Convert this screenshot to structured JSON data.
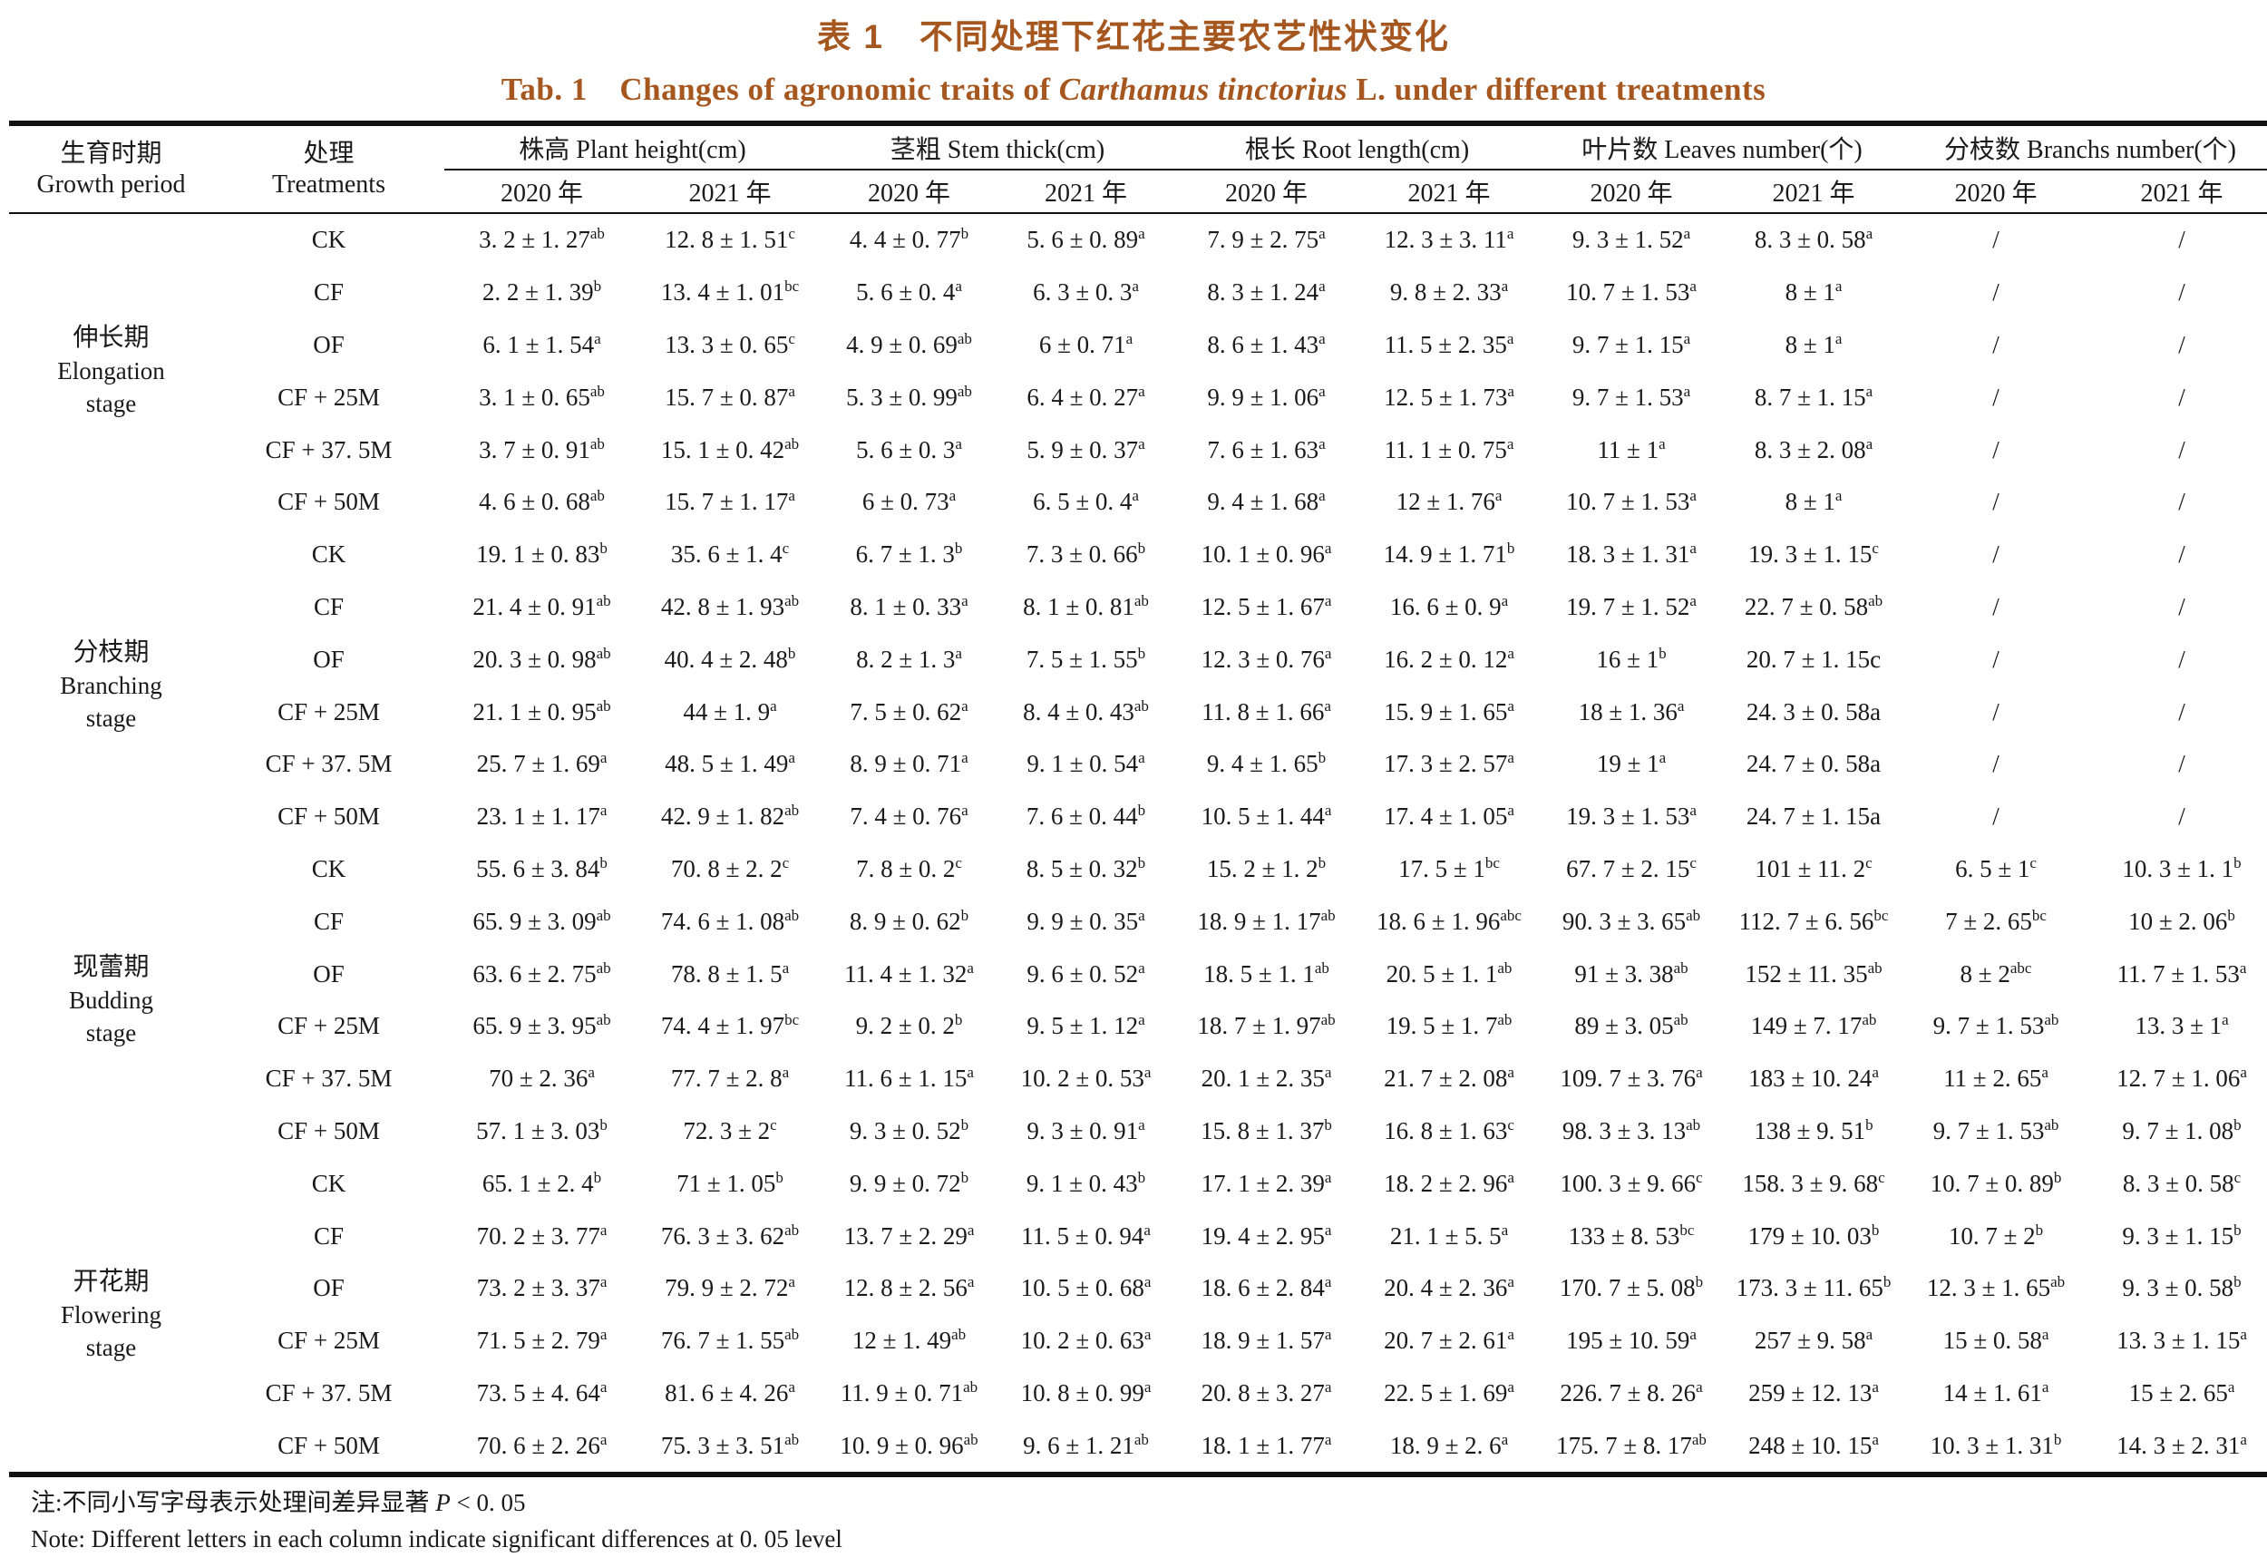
{
  "page": {
    "title_cn": "表 1　不同处理下红花主要农艺性状变化",
    "title_en_prefix": "Tab. 1　Changes of agronomic traits of ",
    "title_en_italic": "Carthamus tinctorius",
    "title_en_suffix": " L.  under different treatments",
    "accent_color": "#a5571f"
  },
  "table": {
    "col_growth": {
      "cn": "生育时期",
      "en": "Growth period"
    },
    "col_treatment": {
      "cn": "处理",
      "en": "Treatments"
    },
    "groups": [
      "株高 Plant height(cm)",
      "茎粗 Stem thick(cm)",
      "根长 Root length(cm)",
      "叶片数 Leaves number(个)",
      "分枝数 Branchs number(个)"
    ],
    "years": [
      "2020 年",
      "2021 年"
    ],
    "stages": [
      {
        "cn": "伸长期",
        "en_lines": [
          "Elongation",
          "stage"
        ],
        "rows": [
          {
            "treatment": "CK",
            "cells": [
              "3. 2 ± 1. 27^ab",
              "12. 8 ± 1. 51^c",
              "4. 4 ± 0. 77^b",
              "5. 6 ± 0. 89^a",
              "7. 9 ± 2. 75^a",
              "12. 3 ± 3. 11^a",
              "9. 3 ± 1. 52^a",
              "8. 3 ± 0. 58^a",
              "/",
              "/"
            ]
          },
          {
            "treatment": "CF",
            "cells": [
              "2. 2 ± 1. 39^b",
              "13. 4 ± 1. 01^bc",
              "5. 6 ± 0. 4^a",
              "6. 3 ± 0. 3^a",
              "8. 3 ± 1. 24^a",
              "9. 8 ± 2. 33^a",
              "10. 7 ± 1. 53^a",
              "8 ± 1^a",
              "/",
              "/"
            ]
          },
          {
            "treatment": "OF",
            "cells": [
              "6. 1 ± 1. 54^a",
              "13. 3 ± 0. 65^c",
              "4. 9 ± 0. 69^ab",
              "6 ± 0. 71^a",
              "8. 6 ± 1. 43^a",
              "11. 5 ± 2. 35^a",
              "9. 7 ± 1. 15^a",
              "8 ± 1^a",
              "/",
              "/"
            ]
          },
          {
            "treatment": "CF + 25M",
            "cells": [
              "3. 1 ± 0. 65^ab",
              "15. 7 ± 0. 87^a",
              "5. 3 ± 0. 99^ab",
              "6. 4 ± 0. 27^a",
              "9. 9 ± 1. 06^a",
              "12. 5 ± 1. 73^a",
              "9. 7 ± 1. 53^a",
              "8. 7 ± 1. 15^a",
              "/",
              "/"
            ]
          },
          {
            "treatment": "CF + 37. 5M",
            "cells": [
              "3. 7 ± 0. 91^ab",
              "15. 1 ± 0. 42^ab",
              "5. 6 ± 0. 3^a",
              "5. 9 ± 0. 37^a",
              "7. 6 ± 1. 63^a",
              "11. 1 ± 0. 75^a",
              "11 ± 1^a",
              "8. 3 ± 2. 08^a",
              "/",
              "/"
            ]
          },
          {
            "treatment": "CF + 50M",
            "cells": [
              "4. 6 ± 0. 68^ab",
              "15. 7 ± 1. 17^a",
              "6 ± 0. 73^a",
              "6. 5 ± 0. 4^a",
              "9. 4 ± 1. 68^a",
              "12 ± 1. 76^a",
              "10. 7 ± 1. 53^a",
              "8 ± 1^a",
              "/",
              "/"
            ]
          }
        ]
      },
      {
        "cn": "分枝期",
        "en_lines": [
          "Branching",
          "stage"
        ],
        "rows": [
          {
            "treatment": "CK",
            "cells": [
              "19. 1 ± 0. 83^b",
              "35. 6 ± 1. 4^c",
              "6. 7 ± 1. 3^b",
              "7. 3 ± 0. 66^b",
              "10. 1 ± 0. 96^a",
              "14. 9 ± 1. 71^b",
              "18. 3 ± 1. 31^a",
              "19. 3 ± 1. 15^c",
              "/",
              "/"
            ]
          },
          {
            "treatment": "CF",
            "cells": [
              "21. 4 ± 0. 91^ab",
              "42. 8 ± 1. 93^ab",
              "8. 1 ± 0. 33^a",
              "8. 1 ± 0. 81^ab",
              "12. 5 ± 1. 67^a",
              "16. 6 ± 0. 9^a",
              "19. 7 ± 1. 52^a",
              "22. 7 ± 0. 58^ab",
              "/",
              "/"
            ]
          },
          {
            "treatment": "OF",
            "cells": [
              "20. 3 ± 0. 98^ab",
              "40. 4 ± 2. 48^b",
              "8. 2 ± 1. 3^a",
              "7. 5 ± 1. 55^b",
              "12. 3 ± 0. 76^a",
              "16. 2 ± 0. 12^a",
              "16 ± 1^b",
              "20. 7 ± 1. 15c",
              "/",
              "/"
            ]
          },
          {
            "treatment": "CF + 25M",
            "cells": [
              "21. 1 ± 0. 95^ab",
              "44 ± 1. 9^a",
              "7. 5 ± 0. 62^a",
              "8. 4 ± 0. 43^ab",
              "11. 8 ± 1. 66^a",
              "15. 9 ± 1. 65^a",
              "18 ± 1. 36^a",
              "24. 3 ± 0. 58a",
              "/",
              "/"
            ]
          },
          {
            "treatment": "CF + 37. 5M",
            "cells": [
              "25. 7 ± 1. 69^a",
              "48. 5 ± 1. 49^a",
              "8. 9 ± 0. 71^a",
              "9. 1 ± 0. 54^a",
              "9. 4 ± 1. 65^b",
              "17. 3 ± 2. 57^a",
              "19 ± 1^a",
              "24. 7 ± 0. 58a",
              "/",
              "/"
            ]
          },
          {
            "treatment": "CF + 50M",
            "cells": [
              "23. 1 ± 1. 17^a",
              "42. 9 ± 1. 82^ab",
              "7. 4 ± 0. 76^a",
              "7. 6 ± 0. 44^b",
              "10. 5 ± 1. 44^a",
              "17. 4 ± 1. 05^a",
              "19. 3 ± 1. 53^a",
              "24. 7 ± 1. 15a",
              "/",
              "/"
            ]
          }
        ]
      },
      {
        "cn": "现蕾期",
        "en_lines": [
          "Budding",
          "stage"
        ],
        "rows": [
          {
            "treatment": "CK",
            "cells": [
              "55. 6 ± 3. 84^b",
              "70. 8 ± 2. 2^c",
              "7. 8 ± 0. 2^c",
              "8. 5 ± 0. 32^b",
              "15. 2 ± 1. 2^b",
              "17. 5 ± 1^bc",
              "67. 7 ± 2. 15^c",
              "101 ± 11. 2^c",
              "6. 5 ± 1^c",
              "10. 3 ± 1. 1^b"
            ]
          },
          {
            "treatment": "CF",
            "cells": [
              "65. 9 ± 3. 09^ab",
              "74. 6 ± 1. 08^ab",
              "8. 9 ± 0. 62^b",
              "9. 9 ± 0. 35^a",
              "18. 9 ± 1. 17^ab",
              "18. 6 ± 1. 96^abc",
              "90. 3 ± 3. 65^ab",
              "112. 7 ± 6. 56^bc",
              "7 ± 2. 65^bc",
              "10 ± 2. 06^b"
            ]
          },
          {
            "treatment": "OF",
            "cells": [
              "63. 6 ± 2. 75^ab",
              "78. 8 ± 1. 5^a",
              "11. 4 ± 1. 32^a",
              "9. 6 ± 0. 52^a",
              "18. 5 ± 1. 1^ab",
              "20. 5 ± 1. 1^ab",
              "91 ± 3. 38^ab",
              "152 ± 11. 35^ab",
              "8 ± 2^abc",
              "11. 7 ± 1. 53^a"
            ]
          },
          {
            "treatment": "CF + 25M",
            "cells": [
              "65. 9 ± 3. 95^ab",
              "74. 4 ± 1. 97^bc",
              "9. 2 ± 0. 2^b",
              "9. 5 ± 1. 12^a",
              "18. 7 ± 1. 97^ab",
              "19. 5 ± 1. 7^ab",
              "89 ± 3. 05^ab",
              "149 ± 7. 17^ab",
              "9. 7 ± 1. 53^ab",
              "13. 3 ± 1^a"
            ]
          },
          {
            "treatment": "CF + 37. 5M",
            "cells": [
              "70 ± 2. 36^a",
              "77. 7 ± 2. 8^a",
              "11. 6 ± 1. 15^a",
              "10. 2 ± 0. 53^a",
              "20. 1 ± 2. 35^a",
              "21. 7 ± 2. 08^a",
              "109. 7 ± 3. 76^a",
              "183 ± 10. 24^a",
              "11 ± 2. 65^a",
              "12. 7 ± 1. 06^a"
            ]
          },
          {
            "treatment": "CF + 50M",
            "cells": [
              "57. 1 ± 3. 03^b",
              "72. 3 ± 2^c",
              "9. 3 ± 0. 52^b",
              "9. 3 ± 0. 91^a",
              "15. 8 ± 1. 37^b",
              "16. 8 ± 1. 63^c",
              "98. 3 ± 3. 13^ab",
              "138 ± 9. 51^b",
              "9. 7 ± 1. 53^ab",
              "9. 7 ± 1. 08^b"
            ]
          }
        ]
      },
      {
        "cn": "开花期",
        "en_lines": [
          "Flowering",
          "stage"
        ],
        "rows": [
          {
            "treatment": "CK",
            "cells": [
              "65. 1 ± 2. 4^b",
              "71 ± 1. 05^b",
              "9. 9 ± 0. 72^b",
              "9. 1 ± 0. 43^b",
              "17. 1 ± 2. 39^a",
              "18. 2 ± 2. 96^a",
              "100. 3 ± 9. 66^c",
              "158. 3 ± 9. 68^c",
              "10. 7 ± 0. 89^b",
              "8. 3 ± 0. 58^c"
            ]
          },
          {
            "treatment": "CF",
            "cells": [
              "70. 2 ± 3. 77^a",
              "76. 3 ± 3. 62^ab",
              "13. 7 ± 2. 29^a",
              "11. 5 ± 0. 94^a",
              "19. 4 ± 2. 95^a",
              "21. 1 ± 5. 5^a",
              "133 ± 8. 53^bc",
              "179 ± 10. 03^b",
              "10. 7 ± 2^b",
              "9. 3 ± 1. 15^b"
            ]
          },
          {
            "treatment": "OF",
            "cells": [
              "73. 2 ± 3. 37^a",
              "79. 9 ± 2. 72^a",
              "12. 8 ± 2. 56^a",
              "10. 5 ± 0. 68^a",
              "18. 6 ± 2. 84^a",
              "20. 4 ± 2. 36^a",
              "170. 7 ± 5. 08^b",
              "173. 3 ± 11. 65^b",
              "12. 3 ± 1. 65^ab",
              "9. 3 ± 0. 58^b"
            ]
          },
          {
            "treatment": "CF + 25M",
            "cells": [
              "71. 5 ± 2. 79^a",
              "76. 7 ± 1. 55^ab",
              "12 ± 1. 49^ab",
              "10. 2 ± 0. 63^a",
              "18. 9 ± 1. 57^a",
              "20. 7 ± 2. 61^a",
              "195 ± 10. 59^a",
              "257 ± 9. 58^a",
              "15 ± 0. 58^a",
              "13. 3 ± 1. 15^a"
            ]
          },
          {
            "treatment": "CF + 37. 5M",
            "cells": [
              "73. 5 ± 4. 64^a",
              "81. 6 ± 4. 26^a",
              "11. 9 ± 0. 71^ab",
              "10. 8 ± 0. 99^a",
              "20. 8 ± 3. 27^a",
              "22. 5 ± 1. 69^a",
              "226. 7 ± 8. 26^a",
              "259 ± 12. 13^a",
              "14 ± 1. 61^a",
              "15 ± 2. 65^a"
            ]
          },
          {
            "treatment": "CF + 50M",
            "cells": [
              "70. 6 ± 2. 26^a",
              "75. 3 ± 3. 51^ab",
              "10. 9 ± 0. 96^ab",
              "9. 6 ± 1. 21^ab",
              "18. 1 ± 1. 77^a",
              "18. 9 ± 2. 6^a",
              "175. 7 ± 8. 17^ab",
              "248 ± 10. 15^a",
              "10. 3 ± 1. 31^b",
              "14. 3 ± 2. 31^a"
            ]
          }
        ]
      }
    ]
  },
  "notes": {
    "cn_prefix": "注:不同小写字母表示处理间差异显著 ",
    "cn_italic": "P",
    "cn_suffix": " < 0. 05",
    "en": "Note: Different letters in each column indicate significant differences at 0. 05 level"
  }
}
